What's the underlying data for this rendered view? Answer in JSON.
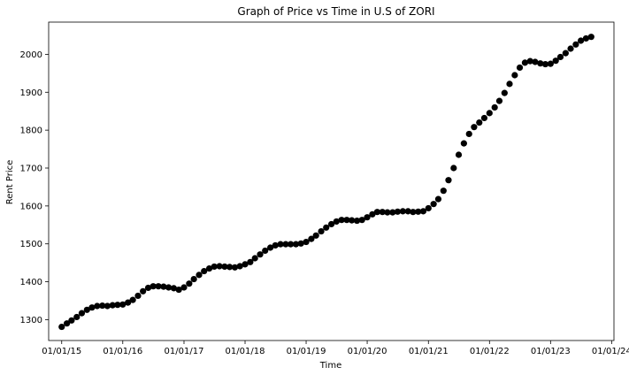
{
  "chart_data": {
    "type": "scatter",
    "title": "Graph of Price vs Time in U.S of ZORI",
    "xlabel": "Time",
    "ylabel": "Rent Price",
    "xlim": [
      "2014-10-15",
      "2024-01-15"
    ],
    "ylim": [
      1245,
      2085
    ],
    "x_ticks": [
      "01/01/15",
      "01/01/16",
      "01/01/17",
      "01/01/18",
      "01/01/19",
      "01/01/20",
      "01/01/21",
      "01/01/22",
      "01/01/23",
      "01/01/24"
    ],
    "y_ticks": [
      1300,
      1400,
      1500,
      1600,
      1700,
      1800,
      1900,
      2000
    ],
    "grid": false,
    "marker_color": "#000000",
    "x_start": "2015-01",
    "x_step": "1 month",
    "values": [
      1281,
      1290,
      1298,
      1307,
      1317,
      1326,
      1332,
      1336,
      1337,
      1336,
      1338,
      1339,
      1340,
      1345,
      1352,
      1363,
      1375,
      1384,
      1388,
      1388,
      1387,
      1385,
      1383,
      1379,
      1385,
      1395,
      1407,
      1418,
      1428,
      1435,
      1440,
      1441,
      1440,
      1439,
      1438,
      1441,
      1446,
      1452,
      1462,
      1472,
      1482,
      1490,
      1496,
      1499,
      1499,
      1499,
      1499,
      1501,
      1505,
      1513,
      1522,
      1533,
      1543,
      1552,
      1559,
      1563,
      1563,
      1562,
      1561,
      1563,
      1570,
      1578,
      1584,
      1584,
      1583,
      1583,
      1585,
      1586,
      1586,
      1584,
      1585,
      1586,
      1594,
      1605,
      1618,
      1640,
      1668,
      1700,
      1735,
      1765,
      1790,
      1808,
      1820,
      1832,
      1845,
      1860,
      1877,
      1898,
      1922,
      1945,
      1965,
      1978,
      1982,
      1980,
      1976,
      1974,
      1975,
      1983,
      1993,
      2003,
      2015,
      2026,
      2036,
      2042,
      2046
    ]
  }
}
